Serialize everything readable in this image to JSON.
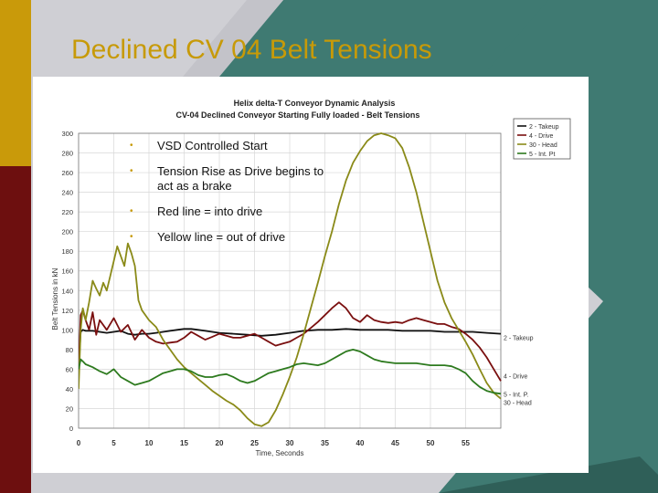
{
  "slide": {
    "title": "Declined CV 04 Belt Tensions",
    "bullets": [
      "VSD Controlled Start",
      "Tension Rise as Drive begins to act as a brake",
      "Red line = into drive",
      "Yellow line = out of drive"
    ],
    "colors": {
      "title": "#c79a08",
      "teal": "#3f7a72",
      "maroon": "#6d0f0f",
      "gold": "#c99a0a"
    }
  },
  "chart_data": {
    "type": "line",
    "title": "Helix delta-T Conveyor Dynamic Analysis",
    "subtitle": "CV-04 Declined Conveyor Starting Fully loaded - Belt Tensions",
    "xlabel": "Time, Seconds",
    "ylabel": "Belt Tensions in kN",
    "xlim": [
      0,
      60
    ],
    "ylim": [
      0,
      300
    ],
    "xticks": [
      "0",
      "5",
      "10",
      "15",
      "20",
      "25",
      "30",
      "35",
      "40",
      "45",
      "50",
      "55"
    ],
    "yticks": [
      "0",
      "20",
      "40",
      "60",
      "80",
      "100",
      "120",
      "140",
      "160",
      "180",
      "200",
      "220",
      "240",
      "260",
      "280",
      "300"
    ],
    "grid": true,
    "legend_position": "top-right",
    "series": [
      {
        "name": "2 - Takeup",
        "end_label": "2 - Takeup",
        "color": "#111111",
        "x": [
          0,
          0.3,
          0.6,
          1,
          2,
          3,
          4,
          5,
          6,
          7,
          8,
          9,
          10,
          11,
          12,
          13,
          14,
          15,
          16,
          17,
          18,
          19,
          20,
          22,
          24,
          26,
          28,
          30,
          32,
          34,
          36,
          38,
          40,
          42,
          44,
          46,
          48,
          50,
          52,
          54,
          56,
          58,
          60
        ],
        "y": [
          60,
          98,
          100,
          99,
          99,
          98,
          97,
          98,
          99,
          96,
          95,
          96,
          96,
          97,
          98,
          99,
          100,
          101,
          101,
          100,
          99,
          98,
          97,
          96,
          95,
          94,
          95,
          97,
          99,
          100,
          100,
          101,
          100,
          100,
          100,
          99,
          99,
          99,
          98,
          98,
          98,
          97,
          96
        ]
      },
      {
        "name": "4 - Drive",
        "end_label": "4 - Drive",
        "color": "#7a0f0f",
        "x": [
          0,
          0.3,
          0.6,
          1,
          1.5,
          2,
          2.5,
          3,
          4,
          5,
          6,
          7,
          8,
          9,
          10,
          11,
          12,
          13,
          14,
          15,
          16,
          17,
          18,
          19,
          20,
          21,
          22,
          23,
          24,
          25,
          26,
          27,
          28,
          29,
          30,
          31,
          32,
          33,
          34,
          35,
          36,
          37,
          38,
          39,
          40,
          41,
          42,
          43,
          44,
          45,
          46,
          47,
          48,
          49,
          50,
          51,
          52,
          53,
          54,
          55,
          56,
          57,
          58,
          59,
          60
        ],
        "y": [
          60,
          115,
          120,
          110,
          100,
          118,
          95,
          110,
          100,
          112,
          98,
          105,
          90,
          100,
          92,
          88,
          86,
          87,
          88,
          92,
          98,
          94,
          90,
          93,
          96,
          94,
          92,
          92,
          94,
          96,
          92,
          88,
          84,
          86,
          88,
          92,
          96,
          102,
          108,
          115,
          122,
          128,
          122,
          112,
          108,
          115,
          110,
          108,
          107,
          108,
          107,
          110,
          112,
          110,
          108,
          106,
          106,
          103,
          101,
          96,
          90,
          82,
          72,
          60,
          48
        ]
      },
      {
        "name": "30 - Head",
        "end_label": "30 - Head",
        "color": "#8a8a18",
        "x": [
          0,
          0.3,
          0.6,
          1,
          1.5,
          2,
          2.5,
          3,
          3.5,
          4,
          4.5,
          5,
          5.5,
          6,
          6.5,
          7,
          7.5,
          8,
          8.5,
          9,
          10,
          11,
          12,
          13,
          14,
          15,
          16,
          17,
          18,
          19,
          20,
          21,
          22,
          23,
          24,
          25,
          26,
          27,
          28,
          29,
          30,
          31,
          32,
          33,
          34,
          35,
          36,
          37,
          38,
          39,
          40,
          41,
          42,
          43,
          44,
          45,
          46,
          47,
          48,
          49,
          50,
          51,
          52,
          53,
          54,
          55,
          56,
          57,
          58,
          59,
          60
        ],
        "y": [
          40,
          100,
          122,
          110,
          128,
          150,
          142,
          135,
          148,
          140,
          155,
          170,
          185,
          175,
          165,
          188,
          178,
          165,
          130,
          120,
          110,
          103,
          90,
          80,
          70,
          62,
          56,
          50,
          44,
          38,
          33,
          28,
          24,
          18,
          10,
          4,
          2,
          6,
          18,
          34,
          52,
          72,
          96,
          122,
          148,
          175,
          200,
          228,
          252,
          270,
          282,
          292,
          298,
          300,
          298,
          295,
          285,
          265,
          240,
          210,
          180,
          150,
          128,
          112,
          100,
          88,
          75,
          60,
          46,
          36,
          30
        ]
      },
      {
        "name": "5 - Int. Pt",
        "end_label": "5 - Int. P.",
        "color": "#2d7a1e",
        "x": [
          0,
          0.3,
          0.6,
          1,
          2,
          3,
          4,
          5,
          6,
          7,
          8,
          9,
          10,
          11,
          12,
          13,
          14,
          15,
          16,
          17,
          18,
          19,
          20,
          21,
          22,
          23,
          24,
          25,
          26,
          27,
          28,
          29,
          30,
          31,
          32,
          33,
          34,
          35,
          36,
          37,
          38,
          39,
          40,
          41,
          42,
          43,
          44,
          45,
          46,
          47,
          48,
          49,
          50,
          51,
          52,
          53,
          54,
          55,
          56,
          57,
          58,
          59,
          60
        ],
        "y": [
          60,
          70,
          68,
          65,
          62,
          58,
          55,
          60,
          52,
          48,
          44,
          46,
          48,
          52,
          56,
          58,
          60,
          60,
          58,
          54,
          52,
          52,
          54,
          55,
          52,
          48,
          46,
          48,
          52,
          56,
          58,
          60,
          62,
          65,
          66,
          65,
          64,
          66,
          70,
          74,
          78,
          80,
          78,
          74,
          70,
          68,
          67,
          66,
          66,
          66,
          66,
          65,
          64,
          64,
          64,
          63,
          60,
          56,
          48,
          42,
          38,
          36,
          35
        ]
      }
    ]
  }
}
